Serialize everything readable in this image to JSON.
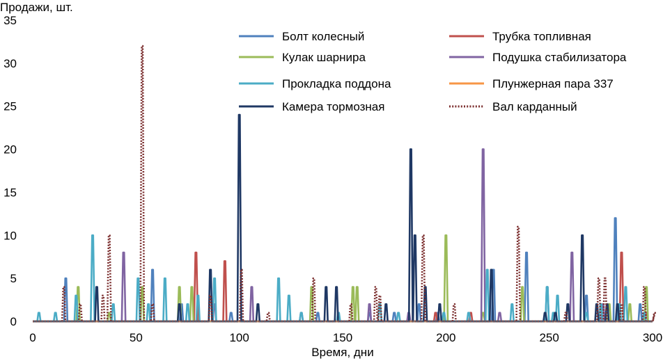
{
  "chart_data": {
    "type": "line",
    "title": "",
    "ylabel": "Продажи, шт.",
    "xlabel": "Время, дни",
    "xlim": [
      0,
      300
    ],
    "ylim": [
      0,
      35
    ],
    "x_ticks": [
      "0",
      "50",
      "100",
      "150",
      "200",
      "250",
      "300"
    ],
    "y_ticks": [
      "0",
      "5",
      "10",
      "15",
      "20",
      "25",
      "30",
      "35"
    ],
    "legend_position": "top-right",
    "grid": false,
    "series": [
      {
        "name": "Болт колесный",
        "color": "#4F81BD",
        "dash": "solid",
        "peaks": [
          [
            16,
            5
          ],
          [
            58,
            6
          ],
          [
            72,
            2
          ],
          [
            96,
            1
          ],
          [
            138,
            1
          ],
          [
            163,
            1
          ],
          [
            175,
            1
          ],
          [
            187,
            2
          ],
          [
            196,
            1
          ],
          [
            223,
            6
          ],
          [
            239,
            8
          ],
          [
            249,
            4
          ],
          [
            268,
            3
          ],
          [
            282,
            12
          ],
          [
            294,
            2
          ]
        ]
      },
      {
        "name": "Трубка топливная",
        "color": "#C0504D",
        "dash": "solid",
        "peaks": [
          [
            79,
            8
          ],
          [
            93,
            7
          ],
          [
            195,
            1
          ],
          [
            212,
            1
          ],
          [
            285,
            8
          ],
          [
            297,
            1
          ]
        ]
      },
      {
        "name": "Кулак шарнира",
        "color": "#9BBB59",
        "dash": "solid",
        "peaks": [
          [
            22,
            4
          ],
          [
            37,
            1
          ],
          [
            53,
            4
          ],
          [
            71,
            4
          ],
          [
            77,
            4
          ],
          [
            135,
            4
          ],
          [
            155,
            4
          ],
          [
            157,
            4
          ],
          [
            200,
            10
          ],
          [
            218,
            1
          ],
          [
            237,
            4
          ],
          [
            279,
            2
          ],
          [
            289,
            2
          ],
          [
            297,
            4
          ]
        ]
      },
      {
        "name": "Подушка стабилизатора",
        "color": "#8064A2",
        "dash": "solid",
        "peaks": [
          [
            44,
            8
          ],
          [
            88,
            2
          ],
          [
            106,
            4
          ],
          [
            130,
            1
          ],
          [
            163,
            2
          ],
          [
            182,
            1
          ],
          [
            218,
            20
          ],
          [
            226,
            1
          ],
          [
            261,
            8
          ],
          [
            276,
            2
          ]
        ]
      },
      {
        "name": "Прокладка поддона",
        "color": "#4BACC6",
        "dash": "solid",
        "peaks": [
          [
            3,
            1
          ],
          [
            11,
            1
          ],
          [
            21,
            3
          ],
          [
            29,
            10
          ],
          [
            39,
            2
          ],
          [
            51,
            5
          ],
          [
            56,
            2
          ],
          [
            64,
            5
          ],
          [
            75,
            2
          ],
          [
            80,
            3
          ],
          [
            88,
            5
          ],
          [
            119,
            5
          ],
          [
            124,
            3
          ],
          [
            130,
            1
          ],
          [
            148,
            1
          ],
          [
            168,
            2
          ],
          [
            177,
            1
          ],
          [
            199,
            1
          ],
          [
            211,
            1
          ],
          [
            220,
            6
          ],
          [
            232,
            2
          ],
          [
            249,
            4
          ],
          [
            252,
            1
          ],
          [
            254,
            3
          ],
          [
            268,
            1
          ],
          [
            275,
            2
          ],
          [
            284,
            2
          ],
          [
            287,
            4
          ],
          [
            296,
            1
          ]
        ]
      },
      {
        "name": "Плунжерная пара 337",
        "color": "#F79646",
        "dash": "solid",
        "peaks": []
      },
      {
        "name": "Камера тормозная",
        "color": "#1F3864",
        "dash": "solid",
        "peaks": [
          [
            31,
            4
          ],
          [
            71,
            2
          ],
          [
            86,
            6
          ],
          [
            100,
            24
          ],
          [
            109,
            2
          ],
          [
            142,
            4
          ],
          [
            147,
            4
          ],
          [
            171,
            2
          ],
          [
            183,
            20
          ],
          [
            185,
            10
          ],
          [
            190,
            4
          ],
          [
            197,
            2
          ],
          [
            222,
            6
          ],
          [
            248,
            1
          ],
          [
            253,
            1
          ],
          [
            259,
            2
          ],
          [
            266,
            10
          ],
          [
            273,
            2
          ],
          [
            278,
            2
          ],
          [
            283,
            2
          ]
        ]
      },
      {
        "name": "Вал карданный",
        "color": "#7B2E2E",
        "dash": "dotted",
        "peaks": [
          [
            15,
            4
          ],
          [
            23,
            2
          ],
          [
            34,
            3
          ],
          [
            37,
            10
          ],
          [
            53,
            32
          ],
          [
            58,
            2
          ],
          [
            86,
            3
          ],
          [
            101,
            6
          ],
          [
            114,
            1
          ],
          [
            136,
            5
          ],
          [
            154,
            2
          ],
          [
            166,
            4
          ],
          [
            168,
            3
          ],
          [
            189,
            10
          ],
          [
            204,
            2
          ],
          [
            235,
            11
          ],
          [
            258,
            1
          ],
          [
            274,
            5
          ],
          [
            277,
            5
          ],
          [
            285,
            2
          ],
          [
            296,
            4
          ],
          [
            301,
            1
          ]
        ]
      }
    ]
  }
}
